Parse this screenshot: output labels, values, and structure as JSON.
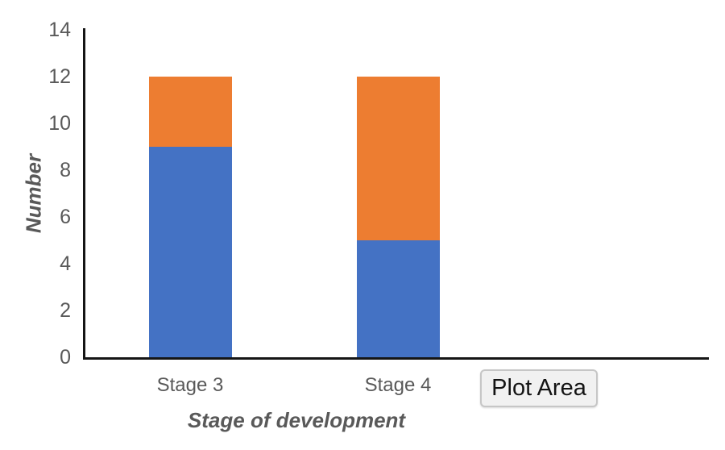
{
  "chart_data": {
    "type": "bar",
    "stacked": true,
    "categories": [
      "Stage 3",
      "Stage 4"
    ],
    "series": [
      {
        "name": "series-blue",
        "color": "#4472C4",
        "values": [
          9,
          5
        ]
      },
      {
        "name": "series-orange",
        "color": "#ED7D31",
        "values": [
          3,
          7
        ]
      }
    ],
    "title": "",
    "xlabel": "Stage of development",
    "ylabel": "Number",
    "ylim": [
      0,
      14
    ],
    "yticks": [
      0,
      2,
      4,
      6,
      8,
      10,
      12,
      14
    ],
    "grid": false,
    "legend": "none"
  },
  "tooltip": {
    "label": "Plot Area"
  },
  "colors": {
    "axis_line": "#151515",
    "tick_text": "#595959",
    "axis_title_text": "#595959",
    "tooltip_bg": "#f1f1f1",
    "tooltip_border": "#c6c6c6",
    "tooltip_text": "#141414"
  }
}
